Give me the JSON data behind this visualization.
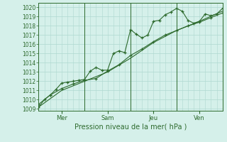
{
  "bg_color": "#d5f0ea",
  "grid_color": "#aed8d0",
  "line_color": "#2d6a2d",
  "marker_color": "#2d6a2d",
  "title": "Pression niveau de la mer( hPa )",
  "ylabel_ticks": [
    1009,
    1010,
    1011,
    1012,
    1013,
    1014,
    1015,
    1016,
    1017,
    1018,
    1019,
    1020
  ],
  "ylim": [
    1008.8,
    1020.5
  ],
  "xlim": [
    0,
    96
  ],
  "day_ticks": [
    12,
    36,
    60,
    84
  ],
  "day_labels": [
    "Mer",
    "Sam",
    "Jeu",
    "Ven"
  ],
  "vlines": [
    24,
    48,
    72,
    96
  ],
  "line1_x": [
    0,
    3,
    6,
    9,
    12,
    15,
    18,
    21,
    24,
    27,
    30,
    33,
    36,
    39,
    42,
    45,
    48,
    51,
    54,
    57,
    60,
    63,
    66,
    69,
    72,
    75,
    78,
    81,
    84,
    87,
    90,
    93,
    96
  ],
  "line1_y": [
    1009.2,
    1010.0,
    1010.5,
    1011.1,
    1011.8,
    1011.9,
    1012.0,
    1012.1,
    1012.2,
    1013.1,
    1013.5,
    1013.2,
    1013.2,
    1015.0,
    1015.3,
    1015.1,
    1017.6,
    1017.1,
    1016.7,
    1017.0,
    1018.5,
    1018.6,
    1019.2,
    1019.5,
    1019.9,
    1019.6,
    1018.6,
    1018.3,
    1018.5,
    1019.3,
    1019.1,
    1019.3,
    1019.9
  ],
  "line2_x": [
    0,
    6,
    12,
    18,
    24,
    30,
    36,
    42,
    48,
    54,
    60,
    66,
    72,
    78,
    84,
    90,
    96
  ],
  "line2_y": [
    1009.5,
    1010.5,
    1011.2,
    1011.7,
    1012.1,
    1012.3,
    1013.1,
    1013.8,
    1014.8,
    1015.5,
    1016.3,
    1017.0,
    1017.5,
    1018.0,
    1018.4,
    1018.9,
    1019.4
  ],
  "line3_x": [
    0,
    12,
    24,
    36,
    48,
    60,
    72,
    84,
    96
  ],
  "line3_y": [
    1009.2,
    1011.0,
    1012.0,
    1013.0,
    1014.5,
    1016.2,
    1017.5,
    1018.5,
    1019.6
  ]
}
